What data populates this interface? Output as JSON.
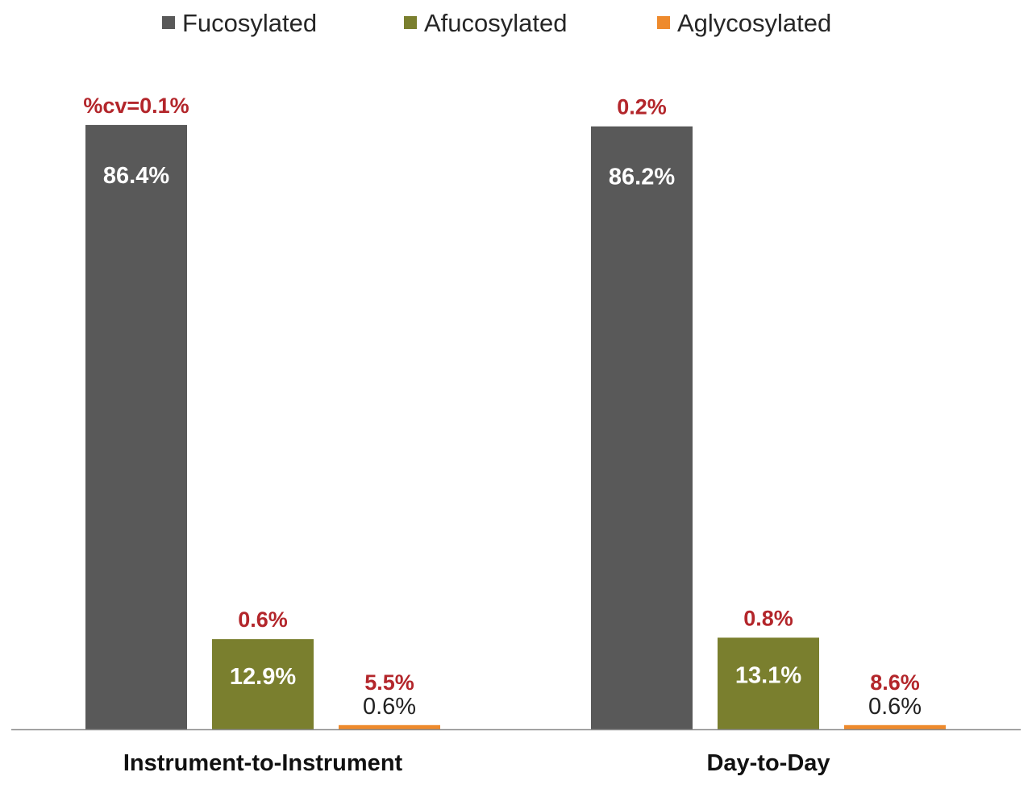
{
  "chart_data": {
    "type": "bar",
    "title": "",
    "xlabel": "",
    "ylabel": "",
    "ylim": [
      0,
      100
    ],
    "grid": false,
    "legend_position": "top",
    "categories": [
      "Instrument-to-Instrument",
      "Day-to-Day"
    ],
    "series": [
      {
        "name": "Fucosylated",
        "color": "#595959",
        "values": [
          86.4,
          86.2
        ],
        "value_labels": [
          "86.4%",
          "86.2%"
        ],
        "cv_labels": [
          "%cv=0.1%",
          "0.2%"
        ]
      },
      {
        "name": "Afucosylated",
        "color": "#7a7f2e",
        "values": [
          12.9,
          13.1
        ],
        "value_labels": [
          "12.9%",
          "13.1%"
        ],
        "cv_labels": [
          "0.6%",
          "0.8%"
        ]
      },
      {
        "name": "Aglycosylated",
        "color": "#ee8a2c",
        "values": [
          0.6,
          0.6
        ],
        "value_labels": [
          "0.6%",
          "0.6%"
        ],
        "cv_labels": [
          "5.5%",
          "8.6%"
        ]
      }
    ],
    "cv_label_color": "#b3262b"
  }
}
